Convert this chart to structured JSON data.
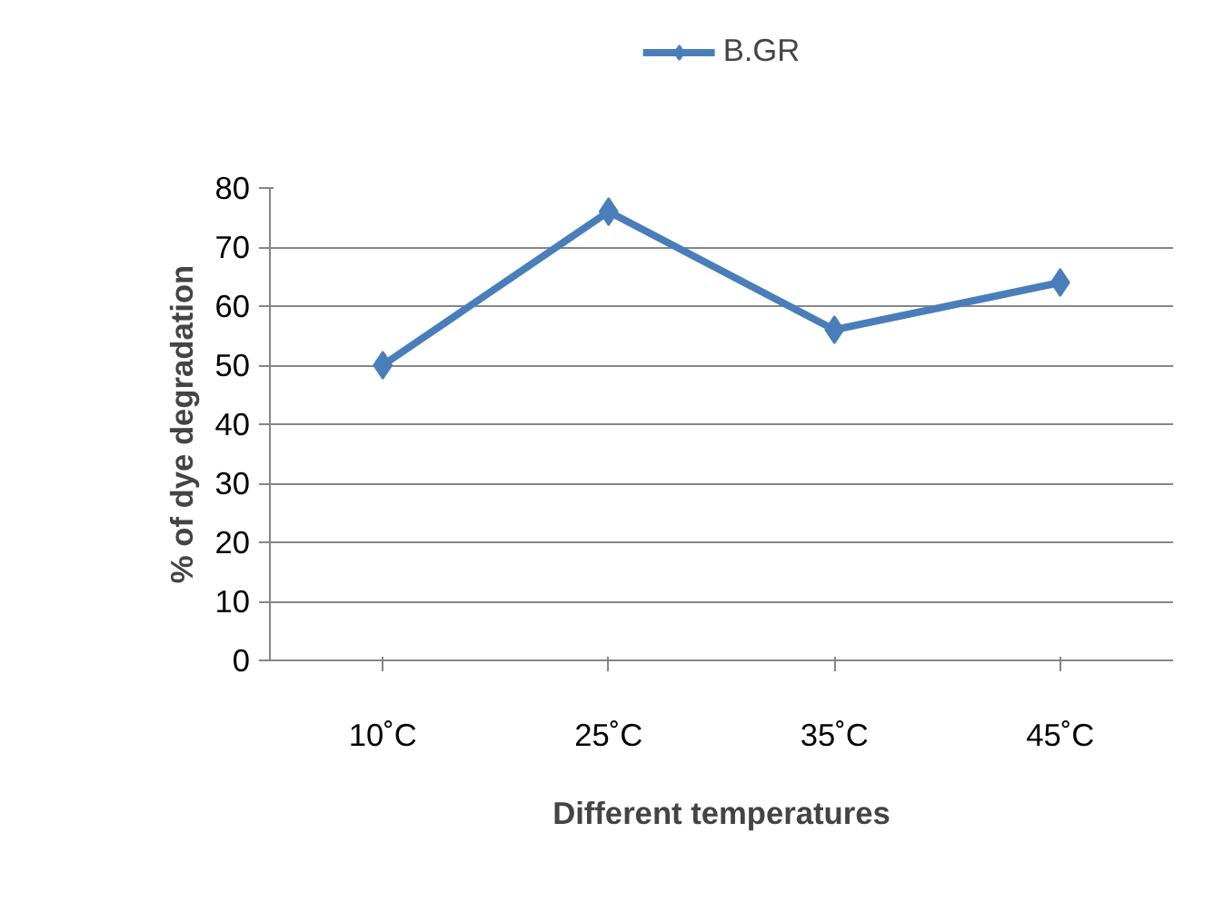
{
  "chart_data": {
    "type": "line",
    "xlabel": "Different temperatures",
    "ylabel": "% of dye degradation",
    "categories": [
      "10˚C",
      "25˚C",
      "35˚C",
      "45˚C"
    ],
    "series": [
      {
        "name": "B.GR",
        "color": "#4a7ebb",
        "values": [
          50,
          76,
          56,
          64
        ]
      }
    ],
    "ylim": [
      0,
      80
    ],
    "yticks": [
      0,
      10,
      20,
      30,
      40,
      50,
      60,
      70,
      80
    ],
    "grid": "y",
    "legend": "top",
    "marker": "diamond",
    "line_style": "solid"
  }
}
